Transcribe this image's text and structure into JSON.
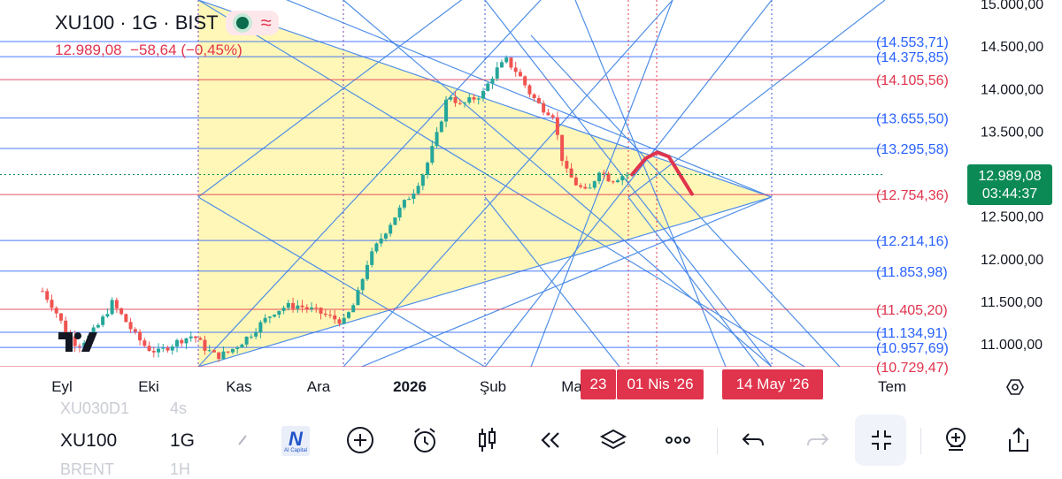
{
  "header": {
    "title": "XU100 · 1G · BIST",
    "price": "12.989,08",
    "change": "−58,64",
    "change_pct": "(−0,45%)"
  },
  "price_tag": {
    "price": "12.989,08",
    "countdown": "03:44:37"
  },
  "date_tags": [
    "23",
    "01 Nis '26",
    "14 May '26"
  ],
  "colors": {
    "up": "#26a69a",
    "down": "#ef5350",
    "blue_level": "#2962ff",
    "red_level": "#e0344c",
    "fill": "#fff7b3",
    "fan": "#4f8fe6",
    "accent_green": "#0b8a55"
  },
  "chart_data": {
    "type": "candlestick",
    "y_axis_labels": [
      "15.000,00",
      "14.500,00",
      "14.000,00",
      "13.500,00",
      "13.000,00",
      "12.500,00",
      "12.000,00",
      "11.500,00",
      "11.000,00"
    ],
    "y_axis_values": [
      15000,
      14500,
      14000,
      13500,
      13000,
      12500,
      12000,
      11500,
      11000
    ],
    "ylim": [
      10820,
      15080
    ],
    "x_axis_labels": [
      "Eyl",
      "Eki",
      "Kas",
      "Ara",
      "2026",
      "Şub",
      "Ma",
      "Tem"
    ],
    "last_price": 12989.08,
    "levels": [
      {
        "label": "(14.553,71)",
        "value": 14553.71,
        "color": "blue"
      },
      {
        "label": "(14.375,85)",
        "value": 14375.85,
        "color": "blue"
      },
      {
        "label": "(14.105,56)",
        "value": 14105.56,
        "color": "red"
      },
      {
        "label": "(13.655,50)",
        "value": 13655.5,
        "color": "blue"
      },
      {
        "label": "(13.295,58)",
        "value": 13295.58,
        "color": "blue"
      },
      {
        "label": "(12.754,36)",
        "value": 12754.36,
        "color": "red"
      },
      {
        "label": "(12.214,16)",
        "value": 12214.16,
        "color": "blue"
      },
      {
        "label": "(11.853,98)",
        "value": 11853.98,
        "color": "blue"
      },
      {
        "label": "(11.405,20)",
        "value": 11405.2,
        "color": "red"
      },
      {
        "label": "(11.134,91)",
        "value": 11134.91,
        "color": "blue"
      },
      {
        "label": "(10.957,69)",
        "value": 10957.69,
        "color": "blue"
      },
      {
        "label": "(10.729,47)",
        "value": 10729.47,
        "color": "red"
      }
    ],
    "price_path": [
      [
        0,
        11620
      ],
      [
        6,
        11420
      ],
      [
        12,
        11150
      ],
      [
        18,
        10980
      ],
      [
        24,
        11080
      ],
      [
        30,
        11250
      ],
      [
        36,
        11480
      ],
      [
        42,
        11300
      ],
      [
        48,
        11100
      ],
      [
        54,
        10950
      ],
      [
        60,
        10900
      ],
      [
        66,
        10980
      ],
      [
        72,
        11050
      ],
      [
        78,
        11100
      ],
      [
        84,
        10950
      ],
      [
        90,
        10850
      ],
      [
        96,
        10900
      ],
      [
        102,
        11000
      ],
      [
        108,
        11120
      ],
      [
        114,
        11260
      ],
      [
        120,
        11380
      ],
      [
        126,
        11440
      ],
      [
        132,
        11450
      ],
      [
        138,
        11410
      ],
      [
        144,
        11360
      ],
      [
        150,
        11300
      ],
      [
        156,
        11260
      ],
      [
        162,
        11500
      ],
      [
        168,
        11950
      ],
      [
        174,
        12200
      ],
      [
        180,
        12420
      ],
      [
        186,
        12620
      ],
      [
        192,
        12800
      ],
      [
        198,
        13050
      ],
      [
        204,
        13450
      ],
      [
        210,
        13950
      ],
      [
        216,
        13800
      ],
      [
        222,
        13870
      ],
      [
        228,
        13950
      ],
      [
        234,
        14200
      ],
      [
        240,
        14330
      ],
      [
        246,
        14180
      ],
      [
        252,
        13950
      ],
      [
        258,
        13780
      ],
      [
        264,
        13700
      ],
      [
        270,
        13050
      ],
      [
        276,
        12880
      ],
      [
        282,
        12760
      ],
      [
        288,
        13050
      ],
      [
        294,
        12920
      ],
      [
        300,
        12980
      ],
      [
        304,
        12989.08
      ]
    ],
    "projection": [
      [
        305,
        12990
      ],
      [
        312,
        13180
      ],
      [
        318,
        13250
      ],
      [
        324,
        13200
      ],
      [
        330,
        12980
      ],
      [
        336,
        12760
      ]
    ],
    "x_range": [
      0,
      400
    ]
  },
  "toolbar": {
    "symbol": "XU100",
    "interval": "1G",
    "ghost_top_symbol": "XU030D1",
    "ghost_top_interval": "4s",
    "ghost_bottom_symbol": "BRENT",
    "ghost_bottom_interval": "1H",
    "ai_label": "AI Capital",
    "icons": [
      "brush-icon",
      "ai-capital-logo",
      "plus-circle-icon",
      "alarm-icon",
      "candles-icon",
      "replay-icon",
      "layers-icon",
      "more-icon",
      "undo-icon",
      "redo-icon",
      "collapse-icon",
      "add-chart-icon",
      "share-icon"
    ]
  }
}
